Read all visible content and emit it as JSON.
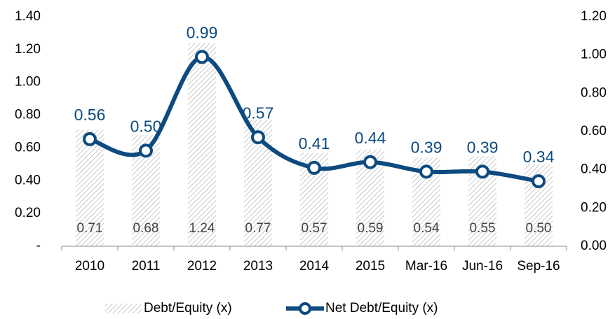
{
  "chart_data": {
    "type": "bar",
    "categories": [
      "2010",
      "2011",
      "2012",
      "2013",
      "2014",
      "2015",
      "Mar-16",
      "Jun-16",
      "Sep-16"
    ],
    "series": [
      {
        "name": "Debt/Equity (x)",
        "type": "bar",
        "color": "#bdbdbd",
        "values": [
          0.71,
          0.68,
          1.24,
          0.77,
          0.57,
          0.59,
          0.54,
          0.55,
          0.5
        ],
        "value_labels": [
          "0.71",
          "0.68",
          "1.24",
          "0.77",
          "0.57",
          "0.59",
          "0.54",
          "0.55",
          "0.50"
        ]
      },
      {
        "name": "Net Debt/Equity (x)",
        "type": "line",
        "axis": "y2",
        "color": "#0c4a80",
        "values": [
          0.56,
          0.5,
          0.99,
          0.57,
          0.41,
          0.44,
          0.39,
          0.39,
          0.34
        ],
        "value_labels": [
          "0.56",
          "0.50",
          "0.99",
          "0.57",
          "0.41",
          "0.44",
          "0.39",
          "0.39",
          "0.34"
        ]
      }
    ],
    "ylim": [
      0,
      1.4
    ],
    "yticks": [
      {
        "value": 0,
        "label": "-"
      },
      {
        "value": 0.2,
        "label": "0.20"
      },
      {
        "value": 0.4,
        "label": "0.40"
      },
      {
        "value": 0.6,
        "label": "0.60"
      },
      {
        "value": 0.8,
        "label": "0.80"
      },
      {
        "value": 1.0,
        "label": "1.00"
      },
      {
        "value": 1.2,
        "label": "1.20"
      },
      {
        "value": 1.4,
        "label": "1.40"
      }
    ],
    "y2lim": [
      0,
      1.2
    ],
    "y2ticks": [
      {
        "value": 0,
        "label": "0.00"
      },
      {
        "value": 0.2,
        "label": "0.20"
      },
      {
        "value": 0.4,
        "label": "0.40"
      },
      {
        "value": 0.6,
        "label": "0.60"
      },
      {
        "value": 0.8,
        "label": "0.80"
      },
      {
        "value": 1.0,
        "label": "1.00"
      },
      {
        "value": 1.2,
        "label": "1.20"
      }
    ],
    "grid": false,
    "legend": "bottom"
  }
}
